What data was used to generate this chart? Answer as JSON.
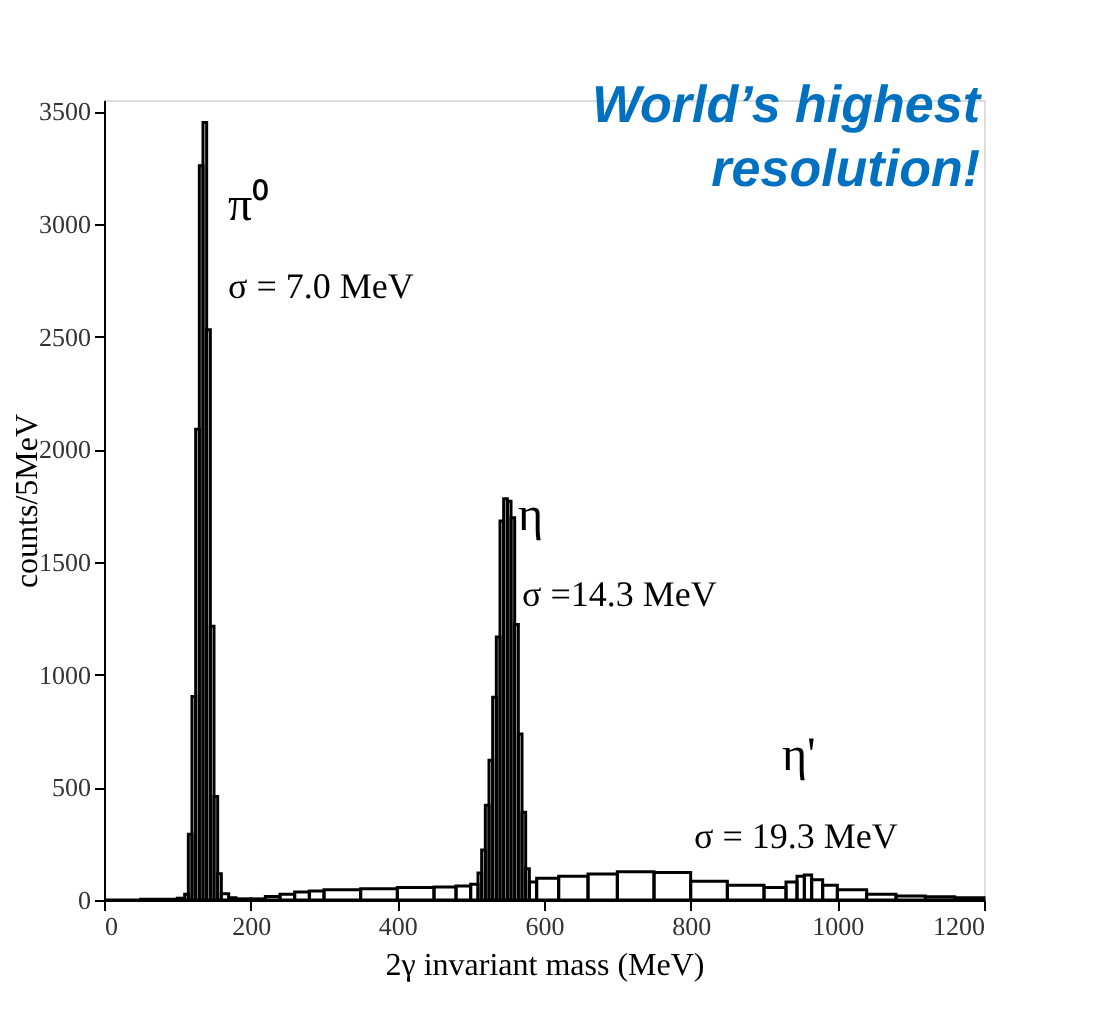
{
  "chart_data": {
    "type": "histogram",
    "xlabel": "2γ invariant mass (MeV)",
    "ylabel": "counts/5MeV",
    "bins": [
      0,
      50,
      100,
      110,
      115,
      120,
      125,
      130,
      135,
      140,
      145,
      150,
      155,
      160,
      170,
      180,
      200,
      220,
      240,
      260,
      280,
      300,
      350,
      400,
      450,
      480,
      500,
      510,
      515,
      520,
      525,
      530,
      535,
      540,
      545,
      550,
      555,
      560,
      565,
      570,
      575,
      580,
      590,
      620,
      660,
      700,
      750,
      800,
      850,
      900,
      930,
      945,
      955,
      965,
      980,
      1000,
      1040,
      1080,
      1120,
      1160,
      1200
    ],
    "values": [
      0,
      3,
      8,
      25,
      292,
      903,
      2089,
      3258,
      3450,
      2530,
      1215,
      459,
      117,
      28,
      10,
      5,
      5,
      15,
      25,
      35,
      40,
      45,
      50,
      55,
      58,
      62,
      70,
      120,
      222,
      420,
      620,
      900,
      1167,
      1682,
      1780,
      1770,
      1696,
      1223,
      737,
      389,
      139,
      80,
      97,
      105,
      115,
      125,
      122,
      83,
      65,
      56,
      80,
      105,
      111,
      90,
      65,
      45,
      25,
      18,
      14,
      10
    ],
    "color": "#000000",
    "xlim": [
      0,
      1200
    ],
    "xticks": [
      0,
      200,
      400,
      600,
      800,
      1000,
      1200
    ],
    "ylim": [
      0,
      3550
    ],
    "yticks": [
      0,
      500,
      1000,
      1500,
      2000,
      2500,
      3000,
      3500
    ],
    "grid": false,
    "annotations": [
      "π⁰",
      "σ = 7.0 MeV",
      "η",
      "σ =14.3 MeV",
      "η'",
      "σ = 19.3 MeV",
      "World’s highest\nresolution!"
    ]
  }
}
